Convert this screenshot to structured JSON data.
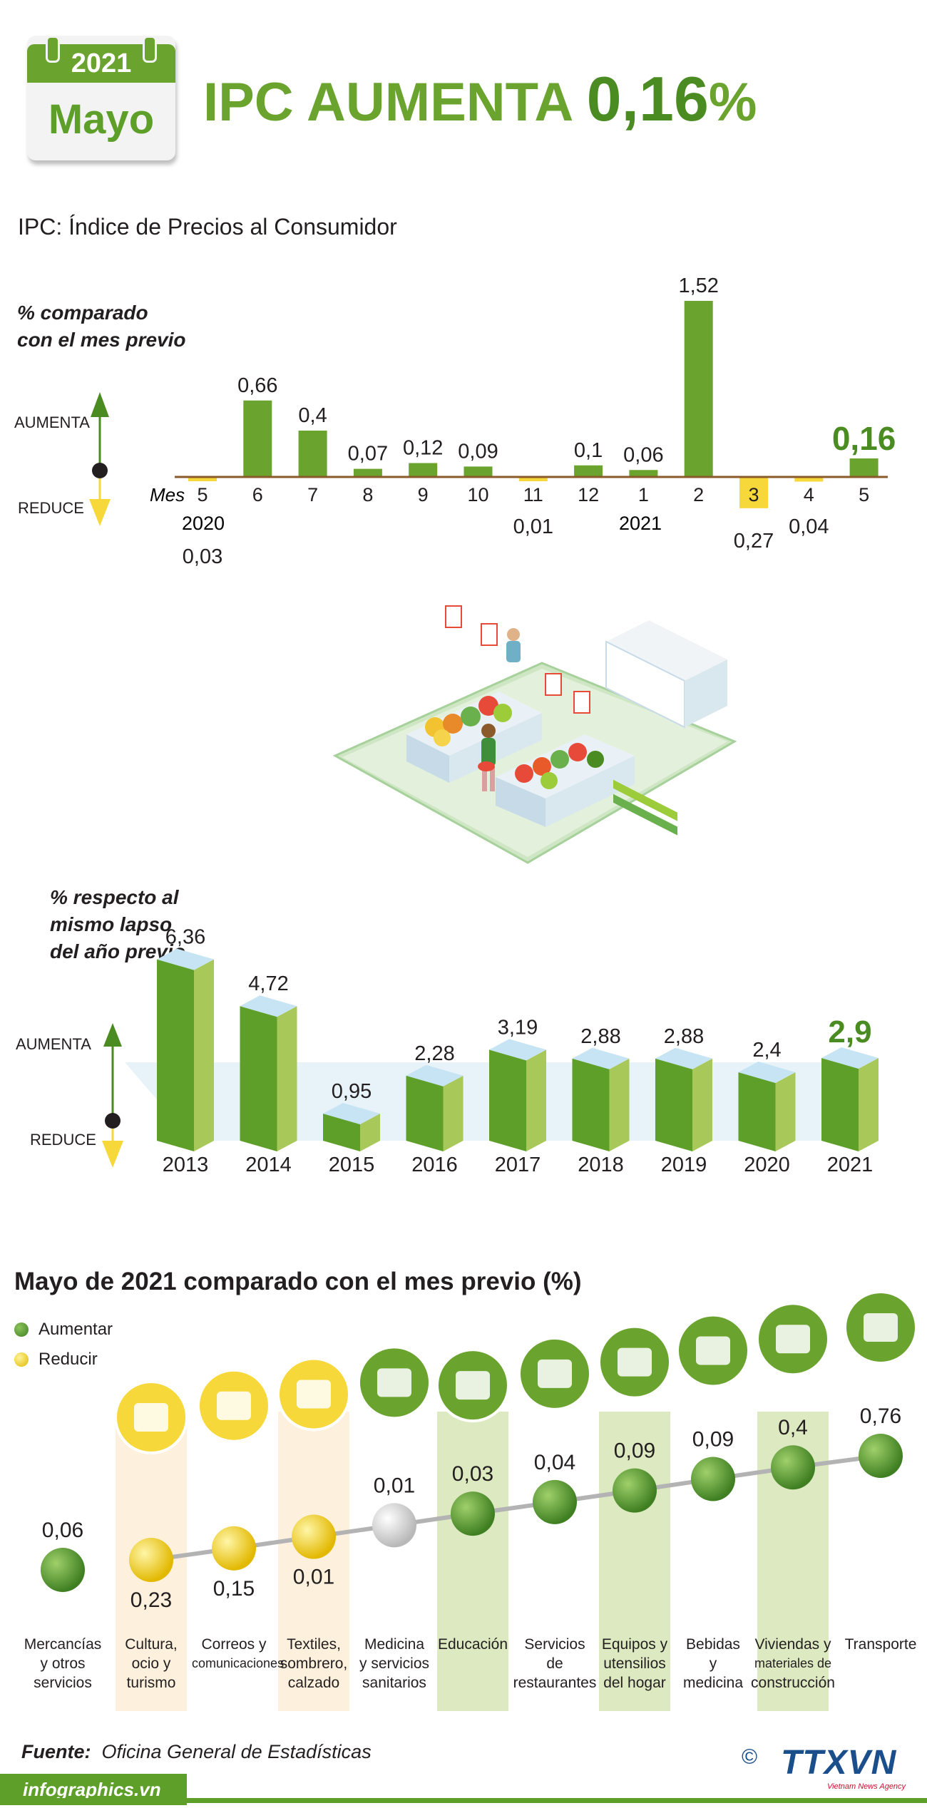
{
  "header": {
    "year": "2021",
    "month": "Mayo",
    "title_prefix": "IPC AUMENTA ",
    "title_value": "0,16",
    "title_suffix": "%",
    "subtitle": "IPC: Índice de Precios al Consumidor"
  },
  "colors": {
    "green": "#6aa32e",
    "dark_green": "#4a8b22",
    "yellow": "#f7d83a",
    "light_green": "#a9c85a",
    "light_blue": "#c6e4f3",
    "highlight_green": "#dde9c0",
    "highlight_peach": "#fdf0dc"
  },
  "monthly_section": {
    "label_line1": "% comparado",
    "label_line2": "con el mes previo",
    "up_label": "AUMENTA",
    "down_label": "REDUCE",
    "axis_prefix": "Mes",
    "year_2020": "2020",
    "year_2021": "2021"
  },
  "yearly_section": {
    "label_line1": "% respecto al",
    "label_line2": "mismo lapso",
    "label_line3": "del año previo",
    "up_label": "AUMENTA",
    "down_label": "REDUCE"
  },
  "category_section": {
    "title": "Mayo de 2021 comparado con el mes previo (%)",
    "legend_up": "Aumentar",
    "legend_down": "Reducir"
  },
  "chart_data": [
    {
      "type": "bar",
      "title": "% comparado con el mes previo",
      "xlabel": "Mes",
      "categories": [
        "5",
        "6",
        "7",
        "8",
        "9",
        "10",
        "11",
        "12",
        "1",
        "2",
        "3",
        "4",
        "5"
      ],
      "values": [
        -0.03,
        0.66,
        0.4,
        0.07,
        0.12,
        0.09,
        -0.01,
        0.1,
        0.06,
        1.52,
        -0.27,
        -0.04,
        0.16
      ],
      "labels": [
        "0,03",
        "0,66",
        "0,4",
        "0,07",
        "0,12",
        "0,09",
        "0,01",
        "0,1",
        "0,06",
        "1,52",
        "0,27",
        "0,04",
        "0,16"
      ]
    },
    {
      "type": "bar",
      "title": "% respecto al mismo lapso del año previo",
      "categories": [
        "2013",
        "2014",
        "2015",
        "2016",
        "2017",
        "2018",
        "2019",
        "2020",
        "2021"
      ],
      "values": [
        6.36,
        4.72,
        0.95,
        2.28,
        3.19,
        2.88,
        2.88,
        2.4,
        2.9
      ],
      "labels": [
        "6,36",
        "4,72",
        "0,95",
        "2,28",
        "3,19",
        "2,88",
        "2,88",
        "2,4",
        "2,9"
      ]
    },
    {
      "type": "scatter",
      "title": "Mayo de 2021 comparado con el mes previo (%)",
      "categories": [
        "Mercancías y otros servicios",
        "Cultura, ocio y turismo",
        "Correos y comunicaciones",
        "Textiles, sombrero, calzado",
        "Medicina y servicios sanitarios",
        "Educación",
        "Servicios de restaurantes",
        "Equipos y utensilios del hogar",
        "Bebidas y medicina",
        "Viviendas y materiales de construcción",
        "Transporte"
      ],
      "values": [
        0.06,
        -0.23,
        -0.15,
        -0.01,
        0.01,
        0.03,
        0.04,
        0.09,
        0.09,
        0.4,
        0.76
      ],
      "labels": [
        "0,06",
        "0,23",
        "0,15",
        "0,01",
        "0,01",
        "0,03",
        "0,04",
        "0,09",
        "0,09",
        "0,4",
        "0,76"
      ],
      "status": [
        "up",
        "down",
        "down",
        "down",
        "neutral",
        "up",
        "up",
        "up",
        "up",
        "up",
        "up"
      ],
      "label_lines": [
        [
          "Mercancías",
          "y otros",
          "servicios"
        ],
        [
          "Cultura,",
          "ocio y",
          "turismo"
        ],
        [
          "Correos y",
          "comunicaciones"
        ],
        [
          "Textiles,",
          "sombrero,",
          "calzado"
        ],
        [
          "Medicina",
          "y servicios",
          "sanitarios"
        ],
        [
          "Educación"
        ],
        [
          "Servicios",
          "de",
          "restaurantes"
        ],
        [
          "Equipos y",
          "utensilios",
          "del hogar"
        ],
        [
          "Bebidas",
          "y",
          "medicina"
        ],
        [
          "Viviendas y",
          "materiales de",
          "construcción"
        ],
        [
          "Transporte"
        ]
      ],
      "icons": [
        "",
        "film-clapper-icon",
        "radio-tower-icon",
        "clothes-icon",
        "pills-icon",
        "graduation-cap-icon",
        "restaurant-plate-icon",
        "washing-machine-icon",
        "drinks-icon",
        "house-icon",
        "traffic-light-icon"
      ]
    }
  ],
  "footer": {
    "source_label": "Fuente:",
    "source_text": "Oficina General de Estadísticas",
    "website": "infographics.vn",
    "logo": "TTXVN",
    "logo_sub": "Vietnam News Agency",
    "copyright": "©"
  }
}
